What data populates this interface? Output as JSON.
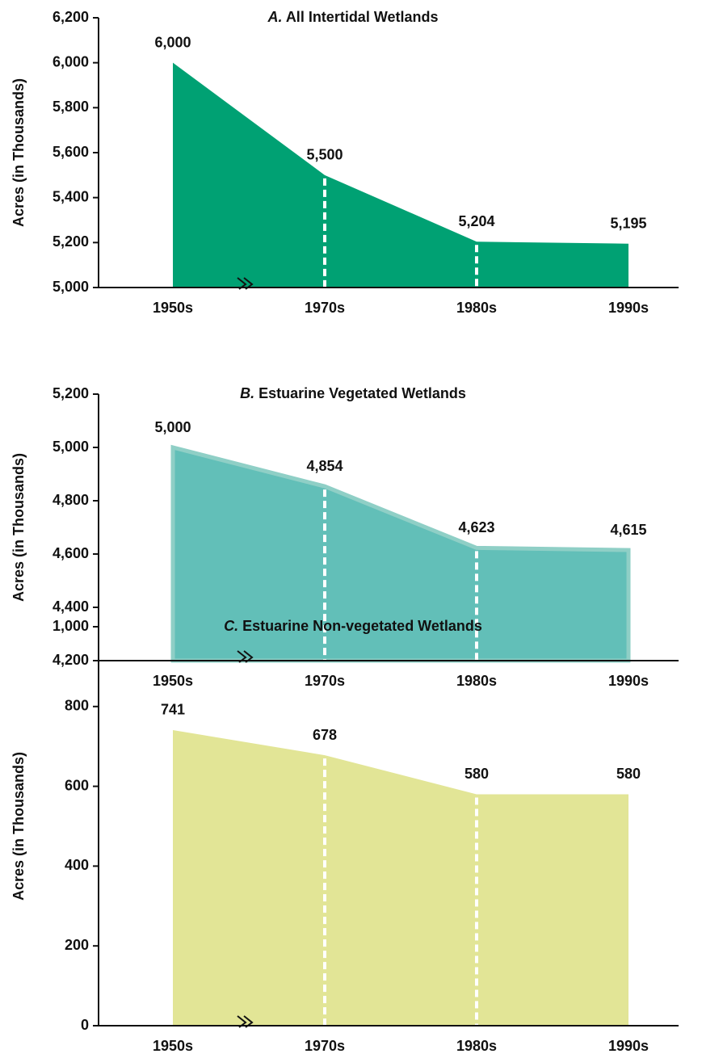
{
  "chart_data": [
    {
      "type": "area",
      "panel_label": "A.",
      "title": "All Intertidal Wetlands",
      "y_label": "Acres (in Thousands)",
      "categories": [
        "1950s",
        "1970s",
        "1980s",
        "1990s"
      ],
      "values": [
        6000,
        5500,
        5204,
        5195
      ],
      "value_labels": [
        "6,000",
        "5,500",
        "5,204",
        "5,195"
      ],
      "color": "#00a173",
      "ylim": [
        5000,
        6200
      ],
      "yticks": [
        {
          "value": 5000,
          "label": "5,000"
        },
        {
          "value": 5200,
          "label": "5,200"
        },
        {
          "value": 5400,
          "label": "5,400"
        },
        {
          "value": 5600,
          "label": "5,600"
        },
        {
          "value": 5800,
          "label": "5,800"
        },
        {
          "value": 6000,
          "label": "6,000"
        },
        {
          "value": 6200,
          "label": "6,200"
        }
      ]
    },
    {
      "type": "area",
      "panel_label": "B.",
      "title": "Estuarine Vegetated Wetlands",
      "y_label": "Acres (in Thousands)",
      "categories": [
        "1950s",
        "1970s",
        "1980s",
        "1990s"
      ],
      "values": [
        5000,
        4854,
        4623,
        4615
      ],
      "value_labels": [
        "5,000",
        "4,854",
        "4,623",
        "4,615"
      ],
      "color": "#62bfb8",
      "ylim": [
        4200,
        5200
      ],
      "yticks": [
        {
          "value": 4200,
          "label": "4,200"
        },
        {
          "value": 4400,
          "label": "4,400"
        },
        {
          "value": 4600,
          "label": "4,600"
        },
        {
          "value": 4800,
          "label": "4,800"
        },
        {
          "value": 5000,
          "label": "5,000"
        },
        {
          "value": 5200,
          "label": "5,200"
        }
      ]
    },
    {
      "type": "area",
      "panel_label": "C.",
      "title": "Estuarine Non-vegetated Wetlands",
      "y_label": "Acres (in Thousands)",
      "categories": [
        "1950s",
        "1970s",
        "1980s",
        "1990s"
      ],
      "values": [
        741,
        678,
        580,
        580
      ],
      "color": "#e2e596",
      "ylim": [
        0,
        1000
      ],
      "yticks": [
        0,
        200,
        400,
        600,
        800,
        {
          "value": 1000,
          "label": "1,000"
        }
      ]
    }
  ]
}
